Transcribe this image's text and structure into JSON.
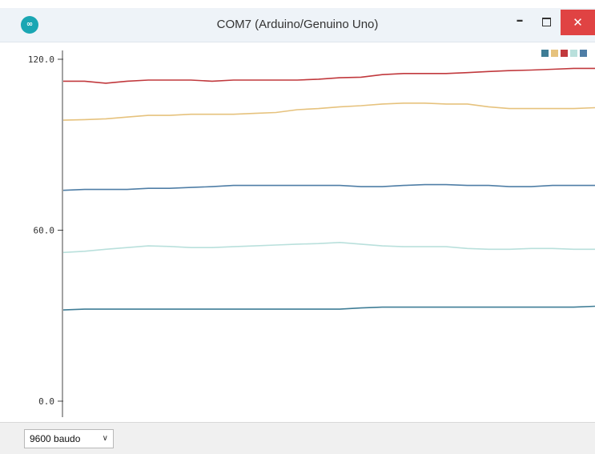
{
  "window": {
    "title": "COM7 (Arduino/Genuino Uno)",
    "icon": "arduino-logo-icon",
    "icon_color": "#1aa6b3",
    "close_color": "#e04343"
  },
  "footer": {
    "baud_rate": "9600 baudo"
  },
  "chart_data": {
    "type": "line",
    "title": "",
    "xlabel": "",
    "ylabel": "",
    "y_ticks": [
      {
        "value": 0,
        "label": "0.0"
      },
      {
        "value": 60,
        "label": "60.0"
      },
      {
        "value": 120,
        "label": "120.0"
      }
    ],
    "ylim": [
      -1,
      121
    ],
    "xlim": [
      0,
      100
    ],
    "grid": false,
    "legend_placement": "top-right",
    "x": [
      0,
      4,
      8,
      12,
      16,
      20,
      24,
      28,
      32,
      36,
      40,
      44,
      48,
      52,
      56,
      60,
      64,
      68,
      72,
      76,
      80,
      84,
      88,
      92,
      96,
      100
    ],
    "series": [
      {
        "color": "#c1393d",
        "values": [
          112.3,
          112.3,
          111.6,
          112.3,
          112.7,
          112.7,
          112.7,
          112.3,
          112.7,
          112.7,
          112.7,
          112.7,
          113.0,
          113.5,
          113.7,
          114.6,
          115.0,
          115.0,
          115.0,
          115.3,
          115.7,
          116.0,
          116.2,
          116.5,
          116.8,
          116.8
        ]
      },
      {
        "color": "#e6c27d",
        "values": [
          98.6,
          98.8,
          99.1,
          99.7,
          100.3,
          100.3,
          100.7,
          100.7,
          100.7,
          101.0,
          101.3,
          102.3,
          102.7,
          103.3,
          103.7,
          104.3,
          104.6,
          104.6,
          104.3,
          104.3,
          103.3,
          102.7,
          102.7,
          102.7,
          102.7,
          103.0
        ]
      },
      {
        "color": "#4f7ea6",
        "values": [
          74.0,
          74.3,
          74.3,
          74.3,
          74.7,
          74.7,
          75.0,
          75.3,
          75.7,
          75.7,
          75.7,
          75.7,
          75.7,
          75.7,
          75.3,
          75.3,
          75.7,
          76.0,
          76.0,
          75.7,
          75.7,
          75.3,
          75.3,
          75.7,
          75.7,
          75.7
        ]
      },
      {
        "color": "#b9e0dc",
        "values": [
          52.2,
          52.6,
          53.3,
          53.9,
          54.5,
          54.3,
          53.9,
          53.9,
          54.2,
          54.5,
          54.8,
          55.1,
          55.3,
          55.7,
          55.1,
          54.5,
          54.2,
          54.2,
          54.2,
          53.6,
          53.3,
          53.3,
          53.6,
          53.6,
          53.3,
          53.3
        ]
      },
      {
        "color": "#3f7d96",
        "values": [
          32.0,
          32.3,
          32.3,
          32.3,
          32.3,
          32.3,
          32.3,
          32.3,
          32.3,
          32.3,
          32.3,
          32.3,
          32.3,
          32.3,
          32.7,
          33.0,
          33.0,
          33.0,
          33.0,
          33.0,
          33.0,
          33.0,
          33.0,
          33.0,
          33.0,
          33.3
        ]
      }
    ]
  }
}
